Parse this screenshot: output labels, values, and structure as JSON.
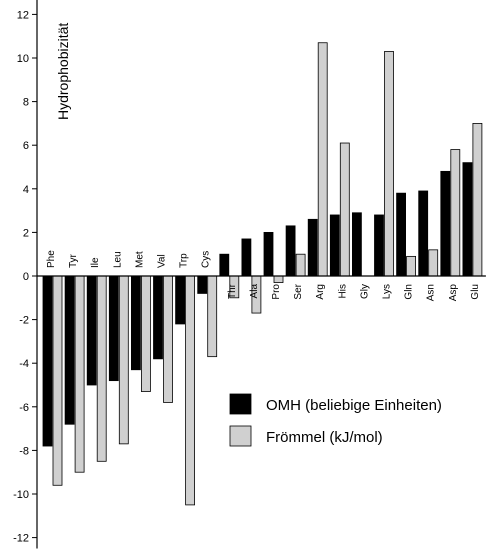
{
  "chart_data": {
    "type": "bar",
    "ylabel": "Hydrophobizität",
    "ylim": [
      -12.5,
      13
    ],
    "yticks": [
      -12,
      -10,
      -8,
      -6,
      -4,
      -2,
      0,
      2,
      4,
      6,
      8,
      10,
      12
    ],
    "categories": [
      "Phe",
      "Tyr",
      "Ile",
      "Leu",
      "Met",
      "Val",
      "Trp",
      "Cys",
      "Thr",
      "Ala",
      "Pro",
      "Ser",
      "Arg",
      "His",
      "Gly",
      "Lys",
      "Gln",
      "Asn",
      "Asp",
      "Glu"
    ],
    "label_side": [
      "above",
      "above",
      "above",
      "above",
      "above",
      "above",
      "above",
      "above",
      "below",
      "below",
      "below",
      "below",
      "below",
      "below",
      "below",
      "below",
      "below",
      "below",
      "below",
      "below"
    ],
    "series": [
      {
        "name": "OMH (beliebige Einheiten)",
        "color": "#000000",
        "values": [
          -7.8,
          -6.8,
          -5.0,
          -4.8,
          -4.3,
          -3.8,
          -2.2,
          -0.8,
          1.0,
          1.7,
          2.0,
          2.3,
          2.6,
          2.8,
          2.9,
          2.8,
          3.8,
          3.9,
          4.8,
          5.2
        ]
      },
      {
        "name": "Frömmel (kJ/mol)",
        "color": "#d0d0d0",
        "values": [
          -9.6,
          -9.0,
          -8.5,
          -7.7,
          -5.3,
          -5.8,
          -10.5,
          -3.7,
          -1.0,
          -1.7,
          -0.3,
          1.0,
          10.7,
          6.1,
          0.0,
          10.3,
          0.9,
          1.2,
          5.8,
          7.0
        ]
      }
    ],
    "legend_position": "bottom-right",
    "grid": false
  }
}
